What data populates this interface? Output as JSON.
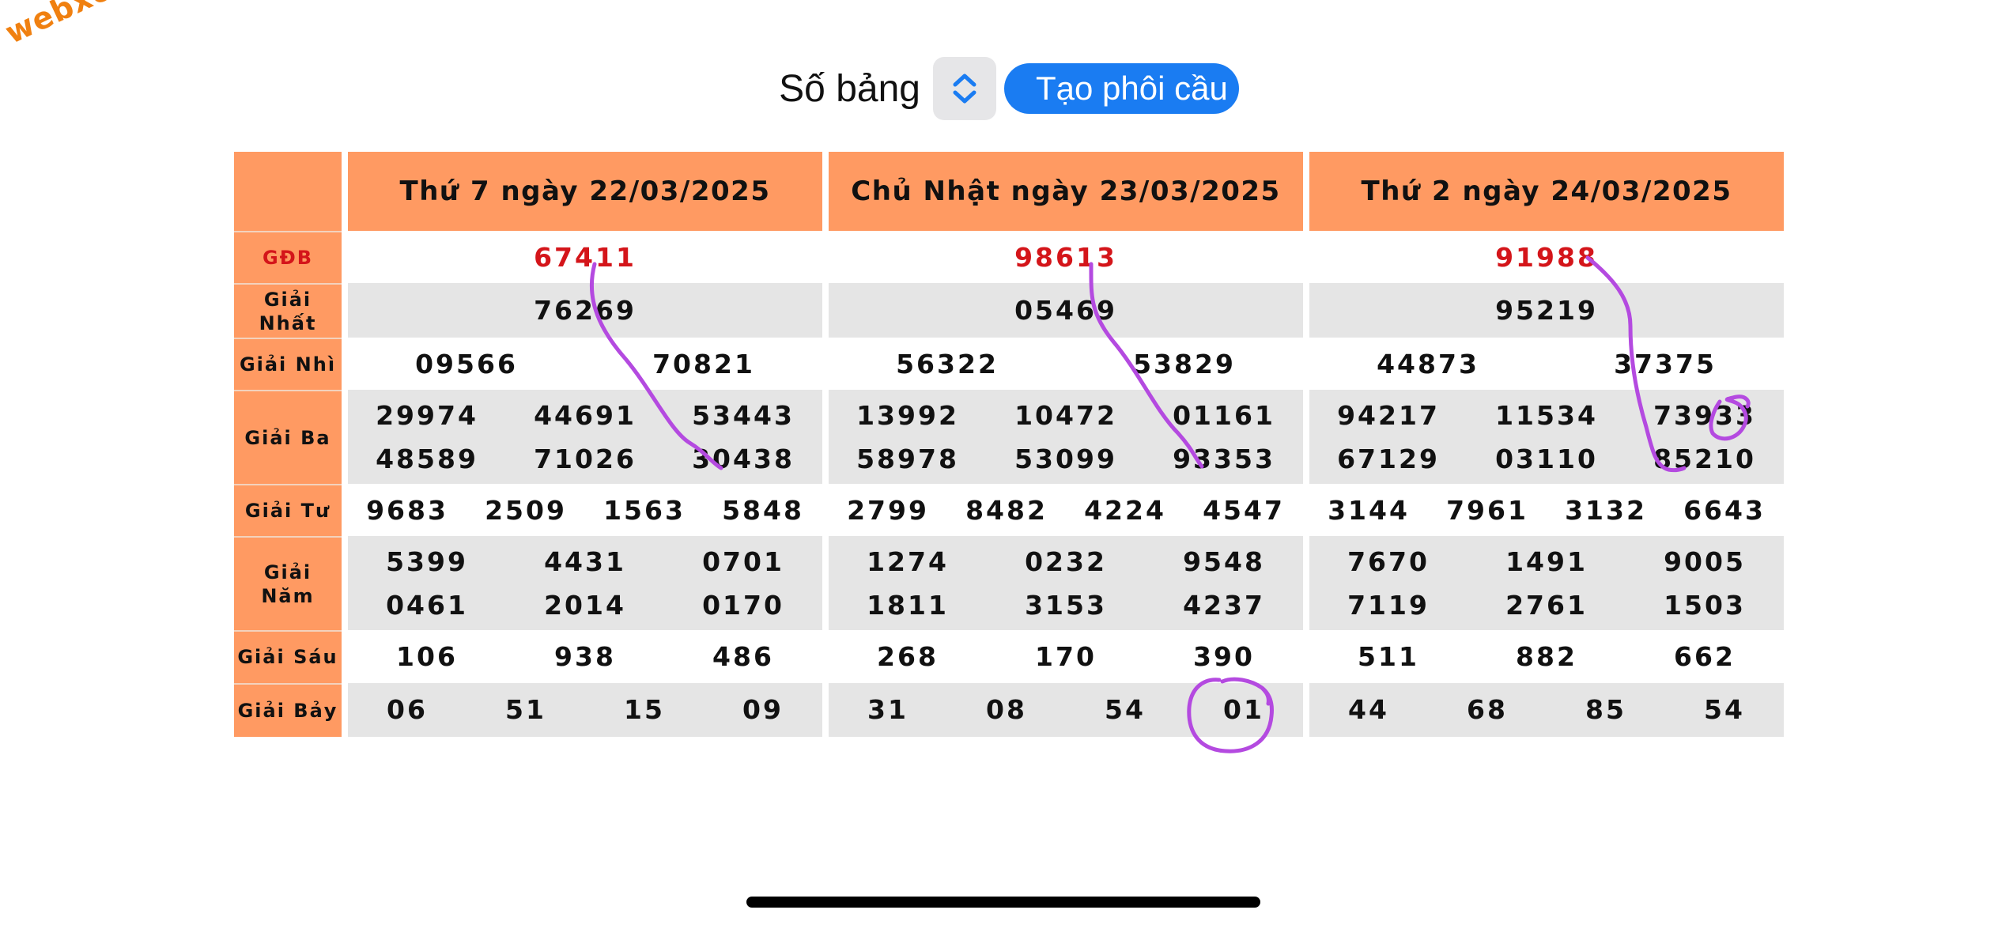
{
  "watermark": "webxoso.net",
  "toolbar": {
    "label": "Số bảng",
    "button": "Tạo phôi cầu"
  },
  "days": [
    "Thứ 7 ngày 22/03/2025",
    "Chủ Nhật ngày 23/03/2025",
    "Thứ 2 ngày 24/03/2025"
  ],
  "labels": {
    "db": "GĐB",
    "nhat": "Giải Nhất",
    "nhi": "Giải Nhì",
    "ba": "Giải Ba",
    "tu": "Giải Tư",
    "nam": "Giải Năm",
    "sau": "Giải Sáu",
    "bay": "Giải Bảy"
  },
  "results": [
    {
      "db": [
        "67411"
      ],
      "nhat": [
        "76269"
      ],
      "nhi": [
        "09566",
        "70821"
      ],
      "ba": [
        "29974",
        "44691",
        "53443",
        "48589",
        "71026",
        "30438"
      ],
      "tu": [
        "9683",
        "2509",
        "1563",
        "5848"
      ],
      "nam": [
        "5399",
        "4431",
        "0701",
        "0461",
        "2014",
        "0170"
      ],
      "sau": [
        "106",
        "938",
        "486"
      ],
      "bay": [
        "06",
        "51",
        "15",
        "09"
      ]
    },
    {
      "db": [
        "98613"
      ],
      "nhat": [
        "05469"
      ],
      "nhi": [
        "56322",
        "53829"
      ],
      "ba": [
        "13992",
        "10472",
        "01161",
        "58978",
        "53099",
        "93353"
      ],
      "tu": [
        "2799",
        "8482",
        "4224",
        "4547"
      ],
      "nam": [
        "1274",
        "0232",
        "9548",
        "1811",
        "3153",
        "4237"
      ],
      "sau": [
        "268",
        "170",
        "390"
      ],
      "bay": [
        "31",
        "08",
        "54",
        "01"
      ]
    },
    {
      "db": [
        "91988"
      ],
      "nhat": [
        "95219"
      ],
      "nhi": [
        "44873",
        "37375"
      ],
      "ba": [
        "94217",
        "11534",
        "73933",
        "67129",
        "03110",
        "85210"
      ],
      "tu": [
        "3144",
        "7961",
        "3132",
        "6643"
      ],
      "nam": [
        "7670",
        "1491",
        "9005",
        "7119",
        "2761",
        "1503"
      ],
      "sau": [
        "511",
        "882",
        "662"
      ],
      "bay": [
        "44",
        "68",
        "85",
        "54"
      ]
    }
  ],
  "colors": {
    "header_bg": "#ff9a62",
    "special_prize": "#d4151a",
    "button": "#1a7cf2",
    "annotation": "#b44ae0",
    "watermark": "#f08010"
  }
}
